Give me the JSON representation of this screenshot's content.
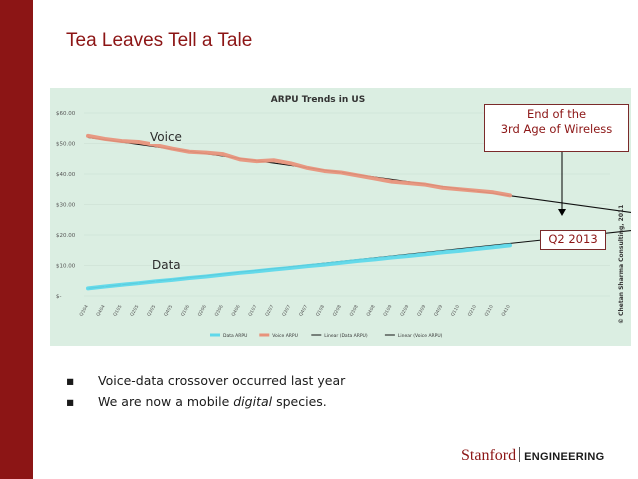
{
  "slide": {
    "title": "Tea Leaves Tell a Tale",
    "bullets": [
      {
        "parts": [
          {
            "text": "Voice-data  crossover  occurred  last year",
            "italic": false
          }
        ]
      },
      {
        "parts": [
          {
            "text": "We are now a mobile ",
            "italic": false
          },
          {
            "text": "digital",
            "italic": true
          },
          {
            "text": " species.",
            "italic": false
          }
        ]
      }
    ],
    "bullet_marker": "▪",
    "logo": {
      "name": "Stanford",
      "dept": "ENGINEERING"
    }
  },
  "annotations": {
    "voice": "Voice",
    "data": "Data",
    "crossover_line1": "End of the",
    "crossover_line2": "3rd Age of Wireless",
    "crossover_date": "Q2 2013"
  },
  "colors": {
    "brand": "#8c1515",
    "data_series": "#5fd8ea",
    "voice_series": "#e8937c",
    "trend": "#111111",
    "chart_bg": "#dbeee2"
  },
  "chart_data": {
    "type": "line",
    "title": "ARPU Trends in US",
    "x": [
      "Q304",
      "Q404",
      "Q105",
      "Q205",
      "Q305",
      "Q405",
      "Q106",
      "Q206",
      "Q306",
      "Q406",
      "Q107",
      "Q207",
      "Q307",
      "Q407",
      "Q108",
      "Q208",
      "Q308",
      "Q408",
      "Q109",
      "Q209",
      "Q309",
      "Q409",
      "Q110",
      "Q210",
      "Q310",
      "Q410"
    ],
    "ylim": [
      0,
      60
    ],
    "y_ticks": [
      "$-",
      "$10.00",
      "$20.00",
      "$30.00",
      "$40.00",
      "$50.00",
      "$60.00"
    ],
    "y_tick_values": [
      0,
      10,
      20,
      30,
      40,
      50,
      60
    ],
    "series": [
      {
        "name": "Data ARPU",
        "style": "thick",
        "values": [
          2.5,
          3.1,
          3.7,
          4.2,
          4.8,
          5.3,
          5.9,
          6.4,
          7.0,
          7.6,
          8.1,
          8.7,
          9.2,
          9.8,
          10.3,
          10.9,
          11.5,
          12.0,
          12.6,
          13.1,
          13.7,
          14.3,
          14.8,
          15.4,
          16.0,
          16.6
        ]
      },
      {
        "name": "Voice ARPU",
        "style": "thick",
        "values": [
          52.5,
          51.5,
          50.8,
          50.5,
          49.5,
          48.3,
          47.3,
          47.0,
          46.5,
          44.8,
          44.2,
          44.5,
          43.5,
          42.0,
          41.0,
          40.5,
          39.5,
          38.5,
          37.5,
          37.0,
          36.5,
          35.5,
          35.0,
          34.5,
          34.0,
          33.0
        ]
      },
      {
        "name": "Linear (Data ARPU)",
        "style": "trend",
        "x_range": [
          0,
          39
        ],
        "values_at": [
          2.5,
          25.5
        ]
      },
      {
        "name": "Linear (Voice ARPU)",
        "style": "trend",
        "x_range": [
          0,
          37.5
        ],
        "values_at": [
          52.0,
          23.3
        ]
      }
    ],
    "watermark": "© Chetan Sharma Consulting, 2011"
  }
}
